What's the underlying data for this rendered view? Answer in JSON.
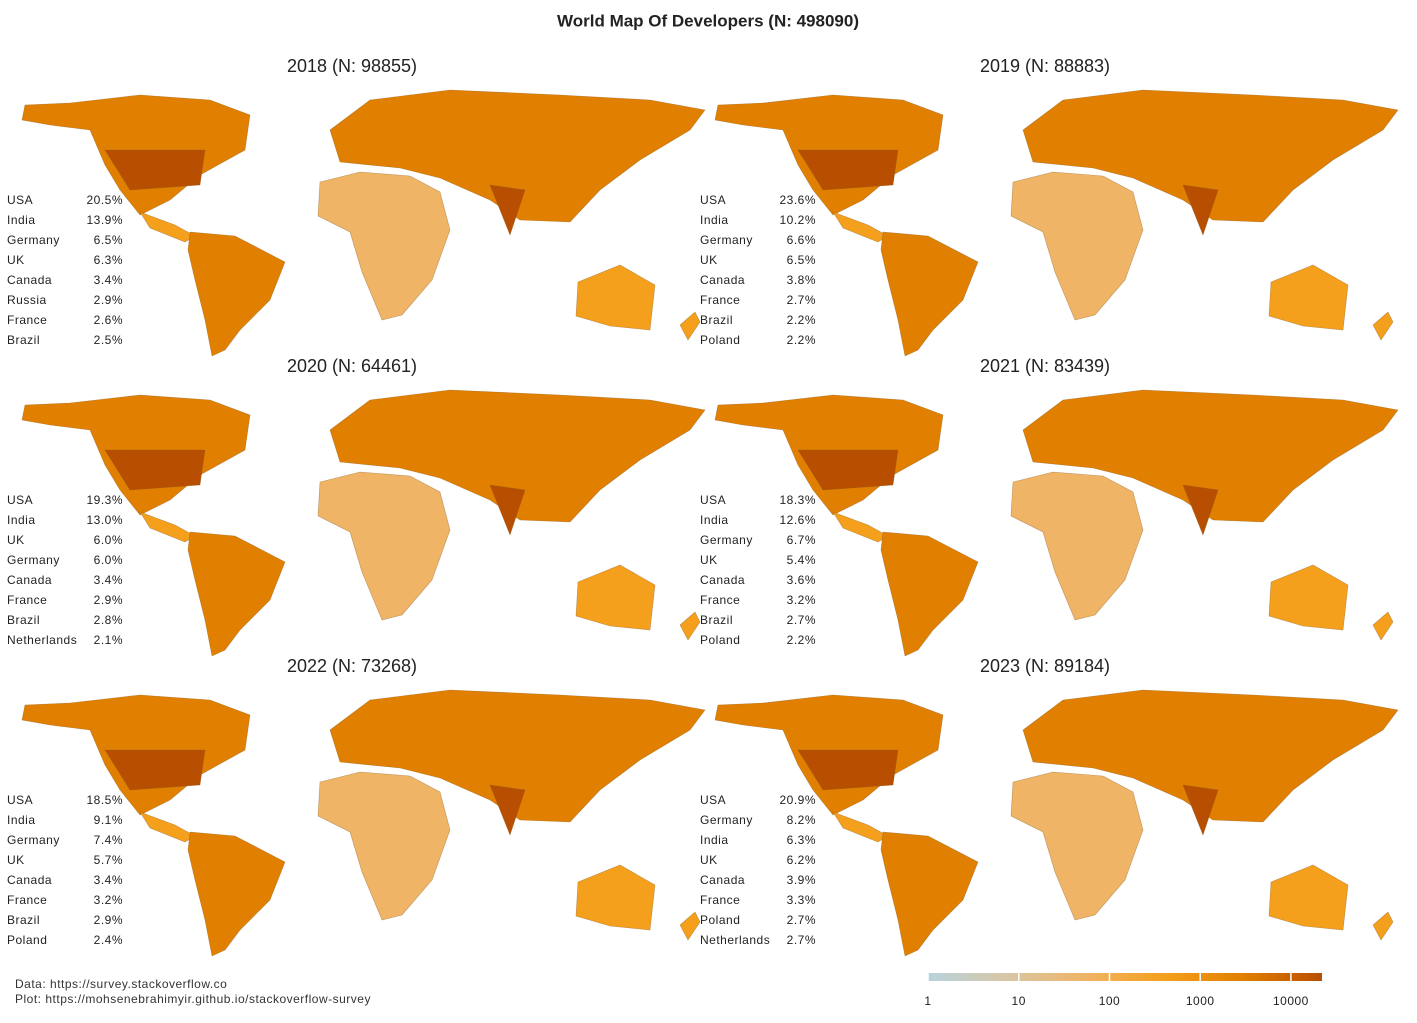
{
  "title": "World Map Of Developers (N: 498090)",
  "caption": [
    "Data: https://survey.stackoverflow.co",
    "Plot: https://mohsenebrahimyir.github.io/stackoverflow-survey"
  ],
  "colorbar": {
    "log_scale": true,
    "lim": [
      1,
      22000
    ],
    "ticks": [
      1,
      10,
      100,
      1000,
      10000
    ],
    "colors": [
      "#b7d3dd",
      "#d8c6a6",
      "#efb466",
      "#f5a01c",
      "#e07f00",
      "#b84f00"
    ]
  },
  "chart_data": [
    {
      "type": "choropleth",
      "title": "2018 (N: 98855)",
      "categories": [
        "USA",
        "India",
        "Germany",
        "UK",
        "Canada",
        "Russia",
        "France",
        "Brazil"
      ],
      "values": [
        20.5,
        13.9,
        6.5,
        6.3,
        3.4,
        2.9,
        2.6,
        2.5
      ],
      "value_labels": [
        "20.5%",
        "13.9%",
        "6.5%",
        "6.3%",
        "3.4%",
        "2.9%",
        "2.6%",
        "2.5%"
      ]
    },
    {
      "type": "choropleth",
      "title": "2019 (N: 88883)",
      "categories": [
        "USA",
        "India",
        "Germany",
        "UK",
        "Canada",
        "France",
        "Brazil",
        "Poland"
      ],
      "values": [
        23.6,
        10.2,
        6.6,
        6.5,
        3.8,
        2.7,
        2.2,
        2.2
      ],
      "value_labels": [
        "23.6%",
        "10.2%",
        "6.6%",
        "6.5%",
        "3.8%",
        "2.7%",
        "2.2%",
        "2.2%"
      ]
    },
    {
      "type": "choropleth",
      "title": "2020 (N: 64461)",
      "categories": [
        "USA",
        "India",
        "UK",
        "Germany",
        "Canada",
        "France",
        "Brazil",
        "Netherlands"
      ],
      "values": [
        19.3,
        13.0,
        6.0,
        6.0,
        3.4,
        2.9,
        2.8,
        2.1
      ],
      "value_labels": [
        "19.3%",
        "13.0%",
        "6.0%",
        "6.0%",
        "3.4%",
        "2.9%",
        "2.8%",
        "2.1%"
      ]
    },
    {
      "type": "choropleth",
      "title": "2021 (N: 83439)",
      "categories": [
        "USA",
        "India",
        "Germany",
        "UK",
        "Canada",
        "France",
        "Brazil",
        "Poland"
      ],
      "values": [
        18.3,
        12.6,
        6.7,
        5.4,
        3.6,
        3.2,
        2.7,
        2.2
      ],
      "value_labels": [
        "18.3%",
        "12.6%",
        "6.7%",
        "5.4%",
        "3.6%",
        "3.2%",
        "2.7%",
        "2.2%"
      ]
    },
    {
      "type": "choropleth",
      "title": "2022 (N: 73268)",
      "categories": [
        "USA",
        "India",
        "Germany",
        "UK",
        "Canada",
        "France",
        "Brazil",
        "Poland"
      ],
      "values": [
        18.5,
        9.1,
        7.4,
        5.7,
        3.4,
        3.2,
        2.9,
        2.4
      ],
      "value_labels": [
        "18.5%",
        "9.1%",
        "7.4%",
        "5.7%",
        "3.4%",
        "3.2%",
        "2.9%",
        "2.4%"
      ]
    },
    {
      "type": "choropleth",
      "title": "2023 (N: 89184)",
      "categories": [
        "USA",
        "Germany",
        "India",
        "UK",
        "Canada",
        "France",
        "Poland",
        "Netherlands"
      ],
      "values": [
        20.9,
        8.2,
        6.3,
        6.2,
        3.9,
        3.3,
        2.7,
        2.7
      ],
      "value_labels": [
        "20.9%",
        "8.2%",
        "6.3%",
        "6.2%",
        "3.9%",
        "3.3%",
        "2.7%",
        "2.7%"
      ]
    }
  ]
}
